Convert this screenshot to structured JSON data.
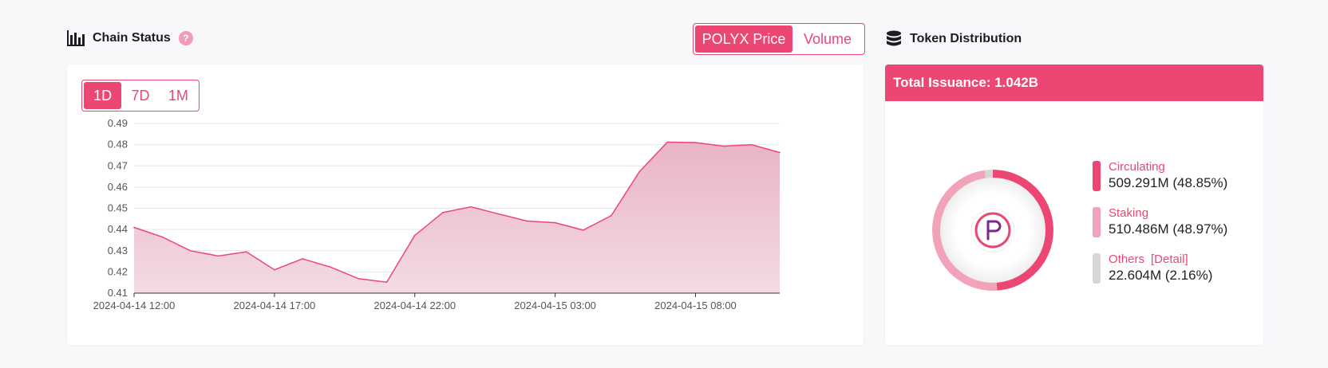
{
  "chain_status": {
    "title": "Chain Status",
    "help": "?",
    "toggle": [
      "POLYX Price",
      "Volume"
    ],
    "ranges": [
      "1D",
      "7D",
      "1M"
    ]
  },
  "token_distribution": {
    "title": "Token Distribution",
    "total_issuance": "Total Issuance: 1.042B",
    "legend": [
      {
        "label": "Circulating",
        "value": "509.291M (48.85%)",
        "color": "#ec4673",
        "fraction": 0.4885
      },
      {
        "label": "Staking",
        "value": "510.486M (48.97%)",
        "color": "#f2a3b9",
        "fraction": 0.4897
      },
      {
        "label": "Others",
        "detail": "[Detail]",
        "value": "22.604M (2.16%)",
        "color": "#d6d6d6",
        "fraction": 0.0216
      }
    ]
  },
  "colors": {
    "accent": "#ec4673",
    "fill": "#eec7d3",
    "grid": "#e4e4ee",
    "axis": "#555555"
  },
  "chart_data": {
    "type": "area",
    "x": [
      "2024-04-14 12:00",
      "2024-04-14 13:00",
      "2024-04-14 14:00",
      "2024-04-14 15:00",
      "2024-04-14 16:00",
      "2024-04-14 17:00",
      "2024-04-14 18:00",
      "2024-04-14 19:00",
      "2024-04-14 20:00",
      "2024-04-14 21:00",
      "2024-04-14 22:00",
      "2024-04-14 23:00",
      "2024-04-15 00:00",
      "2024-04-15 01:00",
      "2024-04-15 02:00",
      "2024-04-15 03:00",
      "2024-04-15 04:00",
      "2024-04-15 05:00",
      "2024-04-15 06:00",
      "2024-04-15 07:00",
      "2024-04-15 08:00",
      "2024-04-15 09:00",
      "2024-04-15 10:00",
      "2024-04-15 11:00"
    ],
    "series": [
      {
        "values": [
          0.441,
          0.4365,
          0.43,
          0.4275,
          0.4295,
          0.421,
          0.4262,
          0.4223,
          0.4168,
          0.4152,
          0.4372,
          0.448,
          0.4507,
          0.4473,
          0.444,
          0.4432,
          0.4397,
          0.4466,
          0.4672,
          0.4812,
          0.481,
          0.4793,
          0.48,
          0.4763
        ]
      }
    ],
    "yticks": [
      "0.49",
      "0.48",
      "0.47",
      "0.46",
      "0.45",
      "0.44",
      "0.43",
      "0.42",
      "0.41"
    ],
    "xticks": [
      "2024-04-14 12:00",
      "2024-04-14 17:00",
      "2024-04-14 22:00",
      "2024-04-15 03:00",
      "2024-04-15 08:00"
    ],
    "xtick_index": [
      0,
      5,
      10,
      15,
      20
    ],
    "ylim": [
      0.41,
      0.49
    ],
    "grid": true
  }
}
